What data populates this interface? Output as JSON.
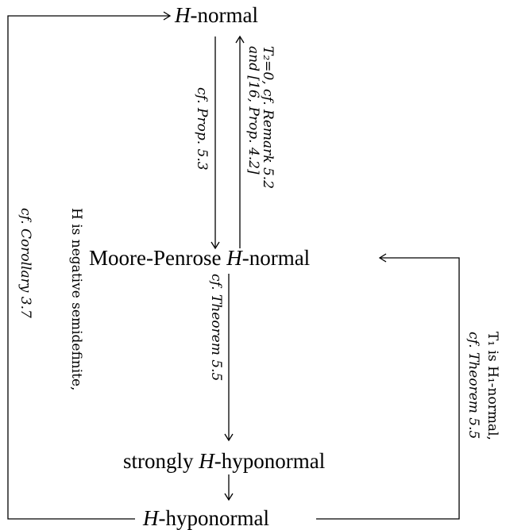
{
  "nodes": {
    "h_normal": {
      "pre": "",
      "var": "H",
      "post": "-normal"
    },
    "mp_normal": {
      "pre": "Moore-Penrose ",
      "var": "H",
      "post": "-normal"
    },
    "strong_hypo": {
      "pre": "strongly ",
      "var": "H",
      "post": "-hyponormal"
    },
    "hypo": {
      "pre": "",
      "var": "H",
      "post": "-hyponormal"
    }
  },
  "labels": {
    "prop53": "cf. Prop. 5.3",
    "t2_line1": "T₂=0, cf. Remark 5.2",
    "t2_line2": "and [16, Prop. 4.2]",
    "thm55_mid": "cf. Theorem 5.5",
    "neg_line1": "H is negative semidefinite,",
    "neg_line2": "cf. Corollary 3.7",
    "t1_line1": "T₁ is H₁-normal,",
    "t1_line2": "cf. Theorem 5.5"
  }
}
